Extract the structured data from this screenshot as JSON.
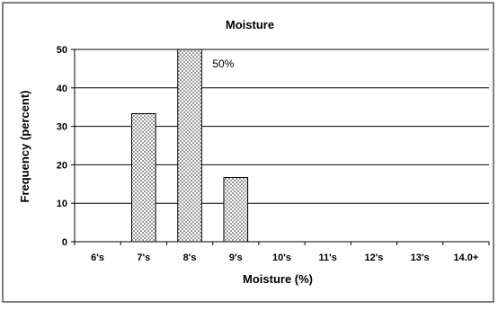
{
  "chart_data": {
    "type": "bar",
    "title": "Moisture",
    "xlabel": "Moisture (%)",
    "ylabel": "Frequency (percent)",
    "categories": [
      "6's",
      "7's",
      "8's",
      "9's",
      "10's",
      "11's",
      "12's",
      "13's",
      "14.0+"
    ],
    "values": [
      0,
      33.3,
      50,
      16.7,
      0,
      0,
      0,
      0,
      0
    ],
    "ylim": [
      0,
      50
    ],
    "yticks": [
      "0",
      "10",
      "20",
      "30",
      "40",
      "50"
    ],
    "grid": true,
    "legend": "none",
    "annotations": [
      {
        "category": "8's",
        "text": "50%"
      }
    ],
    "bar_fill": "stippled gray",
    "bar_stroke": "#000000"
  }
}
